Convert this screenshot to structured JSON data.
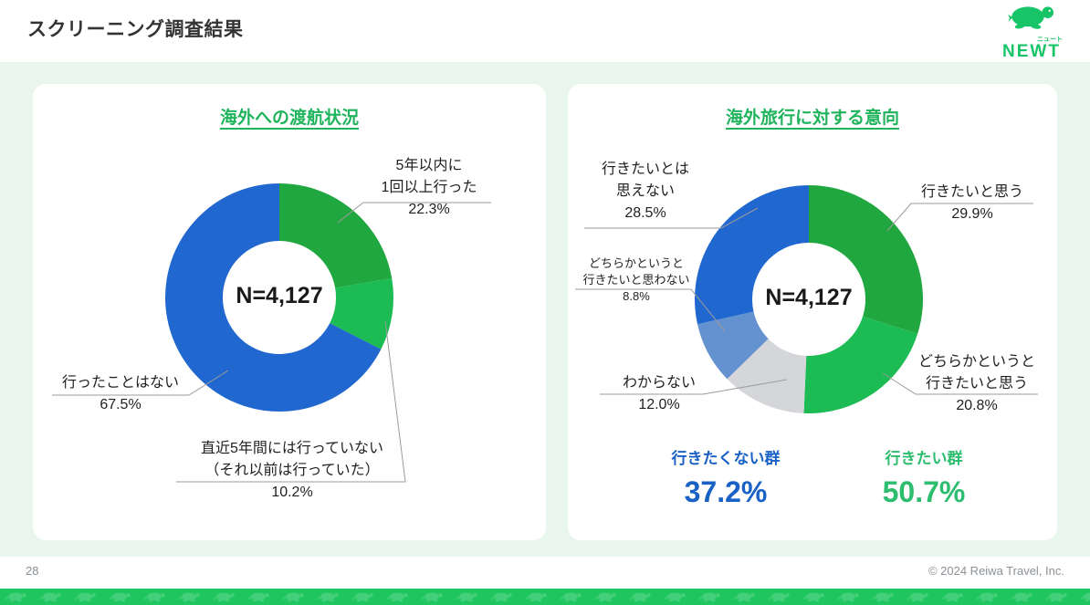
{
  "header": {
    "title": "スクリーニング調査結果",
    "logo": {
      "brand": "NEWT",
      "brand_sub": "ニュート",
      "color": "#17c468"
    }
  },
  "theme": {
    "background": "#e8f6ed",
    "card": "#ffffff",
    "chart_title_color": "#1fb45c",
    "leader_line_color": "#9b9b9b",
    "band_green": "#1fc55f"
  },
  "chart_data": [
    {
      "type": "pie",
      "variant": "donut",
      "title": "海外への渡航状況",
      "center_label": "N=4,127",
      "unit": "%",
      "segments": [
        {
          "label": "5年以内に1回以上行った",
          "label_lines": [
            "5年以内に",
            "1回以上行った"
          ],
          "value": 22.3,
          "pct": "22.3%",
          "color": "#21a73f"
        },
        {
          "label": "直近5年間には行っていない（それ以前は行っていた）",
          "label_lines": [
            "直近5年間には行っていない",
            "（それ以前は行っていた）"
          ],
          "value": 10.2,
          "pct": "10.2%",
          "color": "#1dbb54"
        },
        {
          "label": "行ったことはない",
          "label_lines": [
            "行ったことはない"
          ],
          "value": 67.5,
          "pct": "67.5%",
          "color": "#2068cf"
        }
      ]
    },
    {
      "type": "pie",
      "variant": "donut",
      "title": "海外旅行に対する意向",
      "center_label": "N=4,127",
      "unit": "%",
      "segments": [
        {
          "label": "行きたいと思う",
          "label_lines": [
            "行きたいと思う"
          ],
          "value": 29.9,
          "pct": "29.9%",
          "color": "#21a73f"
        },
        {
          "label": "どちらかというと行きたいと思う",
          "label_lines": [
            "どちらかというと",
            "行きたいと思う"
          ],
          "value": 20.8,
          "pct": "20.8%",
          "color": "#1dbb54"
        },
        {
          "label": "わからない",
          "label_lines": [
            "わからない"
          ],
          "value": 12.0,
          "pct": "12.0%",
          "color": "#d4d6d9"
        },
        {
          "label": "どちらかというと行きたいと思わない",
          "label_lines": [
            "どちらかというと",
            "行きたいと思わない"
          ],
          "value": 8.8,
          "pct": "8.8%",
          "color": "#6491cf"
        },
        {
          "label": "行きたいとは思えない",
          "label_lines": [
            "行きたいとは",
            "思えない"
          ],
          "value": 28.5,
          "pct": "28.5%",
          "color": "#2068cf"
        }
      ],
      "summary": [
        {
          "label": "行きたくない群",
          "value": "37.2%",
          "color": "#1961c5"
        },
        {
          "label": "行きたい群",
          "value": "50.7%",
          "color": "#2dbd6e"
        }
      ]
    }
  ],
  "footer": {
    "page_number": "28",
    "copyright": "© 2024 Reiwa Travel, Inc."
  }
}
